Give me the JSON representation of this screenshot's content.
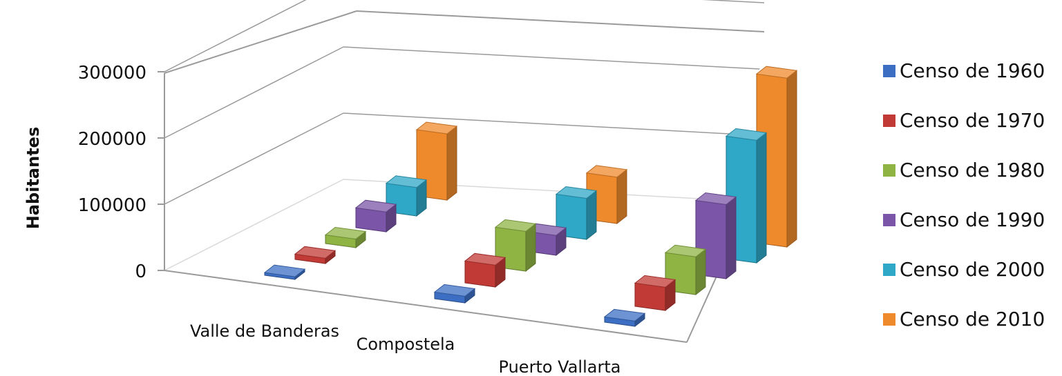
{
  "chart_data": {
    "type": "bar",
    "title": "",
    "xlabel": "",
    "ylabel": "Habitantes",
    "ylim": [
      0,
      300000
    ],
    "yticks": [
      0,
      100000,
      200000,
      300000
    ],
    "grid": true,
    "legend_position": "right",
    "categories": [
      "Valle de Banderas",
      "Compostela",
      "Puerto Vallarta"
    ],
    "series": [
      {
        "name": "Censo de 1960",
        "color": "#3C6FC4",
        "values": [
          4000,
          10000,
          8000
        ]
      },
      {
        "name": "Censo de 1970",
        "color": "#C23A35",
        "values": [
          8000,
          33000,
          35000
        ]
      },
      {
        "name": "Censo de 1980",
        "color": "#8FB444",
        "values": [
          13000,
          60000,
          57000
        ]
      },
      {
        "name": "Censo de 1990",
        "color": "#7B55A8",
        "values": [
          30000,
          30000,
          112000
        ]
      },
      {
        "name": "Censo de 2000",
        "color": "#2FA7C7",
        "values": [
          43000,
          62000,
          185000
        ]
      },
      {
        "name": "Censo de 2010",
        "color": "#EF8A2C",
        "values": [
          100000,
          70000,
          255000
        ]
      }
    ]
  }
}
